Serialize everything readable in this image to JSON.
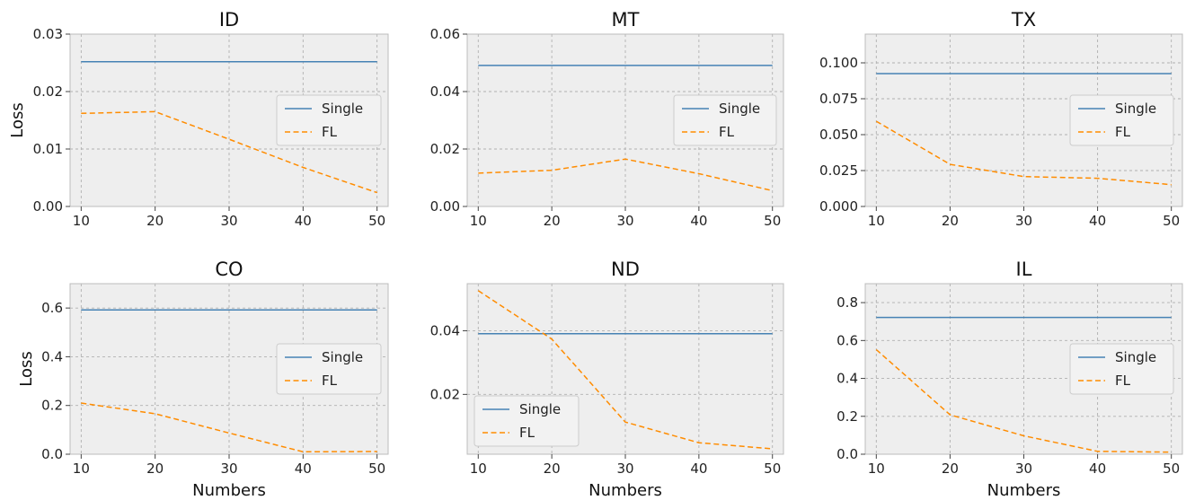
{
  "colors": {
    "single": "#4682b4",
    "fl": "#ff8c00",
    "panel_bg": "#eeeeee",
    "grid": "#b0b0b0"
  },
  "chart_data": [
    {
      "type": "line",
      "title": "ID",
      "xlabel": "",
      "ylabel": "Loss",
      "x": [
        10,
        20,
        30,
        40,
        50
      ],
      "xlim": [
        8.5,
        51.5
      ],
      "ylim": [
        0,
        0.03
      ],
      "xticks": [
        "10",
        "20",
        "30",
        "40",
        "50"
      ],
      "yticks": [
        0,
        0.01,
        0.02,
        0.03
      ],
      "ytick_labels": [
        "0.00",
        "0.01",
        "0.02",
        "0.03"
      ],
      "legend_position": "center-right",
      "grid": true,
      "series": [
        {
          "name": "Single",
          "style": "solid",
          "values": [
            0.0252,
            0.0252,
            0.0252,
            0.0252,
            0.0252
          ]
        },
        {
          "name": "FL",
          "style": "dashed",
          "values": [
            0.0162,
            0.0165,
            0.0117,
            0.0068,
            0.0024
          ]
        }
      ]
    },
    {
      "type": "line",
      "title": "MT",
      "xlabel": "",
      "ylabel": "",
      "x": [
        10,
        20,
        30,
        40,
        50
      ],
      "xlim": [
        8.5,
        51.5
      ],
      "ylim": [
        0,
        0.06
      ],
      "xticks": [
        "10",
        "20",
        "30",
        "40",
        "50"
      ],
      "yticks": [
        0,
        0.02,
        0.04,
        0.06
      ],
      "ytick_labels": [
        "0.00",
        "0.02",
        "0.04",
        "0.06"
      ],
      "legend_position": "center-right",
      "grid": true,
      "series": [
        {
          "name": "Single",
          "style": "solid",
          "values": [
            0.0491,
            0.0491,
            0.0491,
            0.0491,
            0.0491
          ]
        },
        {
          "name": "FL",
          "style": "dashed",
          "values": [
            0.0116,
            0.0126,
            0.0165,
            0.0114,
            0.0055
          ]
        }
      ]
    },
    {
      "type": "line",
      "title": "TX",
      "xlabel": "",
      "ylabel": "",
      "x": [
        10,
        20,
        30,
        40,
        50
      ],
      "xlim": [
        8.5,
        51.5
      ],
      "ylim": [
        0,
        0.12
      ],
      "xticks": [
        "10",
        "20",
        "30",
        "40",
        "50"
      ],
      "yticks": [
        0,
        0.025,
        0.05,
        0.075,
        0.1
      ],
      "ytick_labels": [
        "0.000",
        "0.025",
        "0.050",
        "0.075",
        "0.100"
      ],
      "legend_position": "center-right",
      "grid": true,
      "series": [
        {
          "name": "Single",
          "style": "solid",
          "values": [
            0.0925,
            0.0925,
            0.0925,
            0.0925,
            0.0925
          ]
        },
        {
          "name": "FL",
          "style": "dashed",
          "values": [
            0.0593,
            0.0293,
            0.0208,
            0.0196,
            0.0152
          ]
        }
      ]
    },
    {
      "type": "line",
      "title": "CO",
      "xlabel": "Numbers",
      "ylabel": "Loss",
      "x": [
        10,
        20,
        30,
        40,
        50
      ],
      "xlim": [
        8.5,
        51.5
      ],
      "ylim": [
        0,
        0.7
      ],
      "xticks": [
        "10",
        "20",
        "30",
        "40",
        "50"
      ],
      "yticks": [
        0,
        0.2,
        0.4,
        0.6
      ],
      "ytick_labels": [
        "0.0",
        "0.2",
        "0.4",
        "0.6"
      ],
      "legend_position": "center-right",
      "grid": true,
      "series": [
        {
          "name": "Single",
          "style": "solid",
          "values": [
            0.592,
            0.592,
            0.592,
            0.592,
            0.592
          ]
        },
        {
          "name": "FL",
          "style": "dashed",
          "values": [
            0.21,
            0.166,
            0.087,
            0.01,
            0.011
          ]
        }
      ]
    },
    {
      "type": "line",
      "title": "ND",
      "xlabel": "Numbers",
      "ylabel": "",
      "x": [
        10,
        20,
        30,
        40,
        50
      ],
      "xlim": [
        8.5,
        51.5
      ],
      "ylim": [
        0.0012,
        0.0548
      ],
      "xticks": [
        "10",
        "20",
        "30",
        "40",
        "50"
      ],
      "yticks": [
        0.02,
        0.04
      ],
      "ytick_labels": [
        "0.02",
        "0.04"
      ],
      "legend_position": "lower-left",
      "grid": true,
      "series": [
        {
          "name": "Single",
          "style": "solid",
          "values": [
            0.0391,
            0.0391,
            0.0391,
            0.0391,
            0.0391
          ]
        },
        {
          "name": "FL",
          "style": "dashed",
          "values": [
            0.0526,
            0.0374,
            0.0113,
            0.0048,
            0.0029
          ]
        }
      ]
    },
    {
      "type": "line",
      "title": "IL",
      "xlabel": "Numbers",
      "ylabel": "",
      "x": [
        10,
        20,
        30,
        40,
        50
      ],
      "xlim": [
        8.5,
        51.5
      ],
      "ylim": [
        0,
        0.9
      ],
      "xticks": [
        "10",
        "20",
        "30",
        "40",
        "50"
      ],
      "yticks": [
        0,
        0.2,
        0.4,
        0.6,
        0.8
      ],
      "ytick_labels": [
        "0.0",
        "0.2",
        "0.4",
        "0.6",
        "0.8"
      ],
      "legend_position": "center-right",
      "grid": true,
      "series": [
        {
          "name": "Single",
          "style": "solid",
          "values": [
            0.722,
            0.722,
            0.722,
            0.722,
            0.722
          ]
        },
        {
          "name": "FL",
          "style": "dashed",
          "values": [
            0.552,
            0.208,
            0.097,
            0.015,
            0.011
          ]
        }
      ]
    }
  ]
}
